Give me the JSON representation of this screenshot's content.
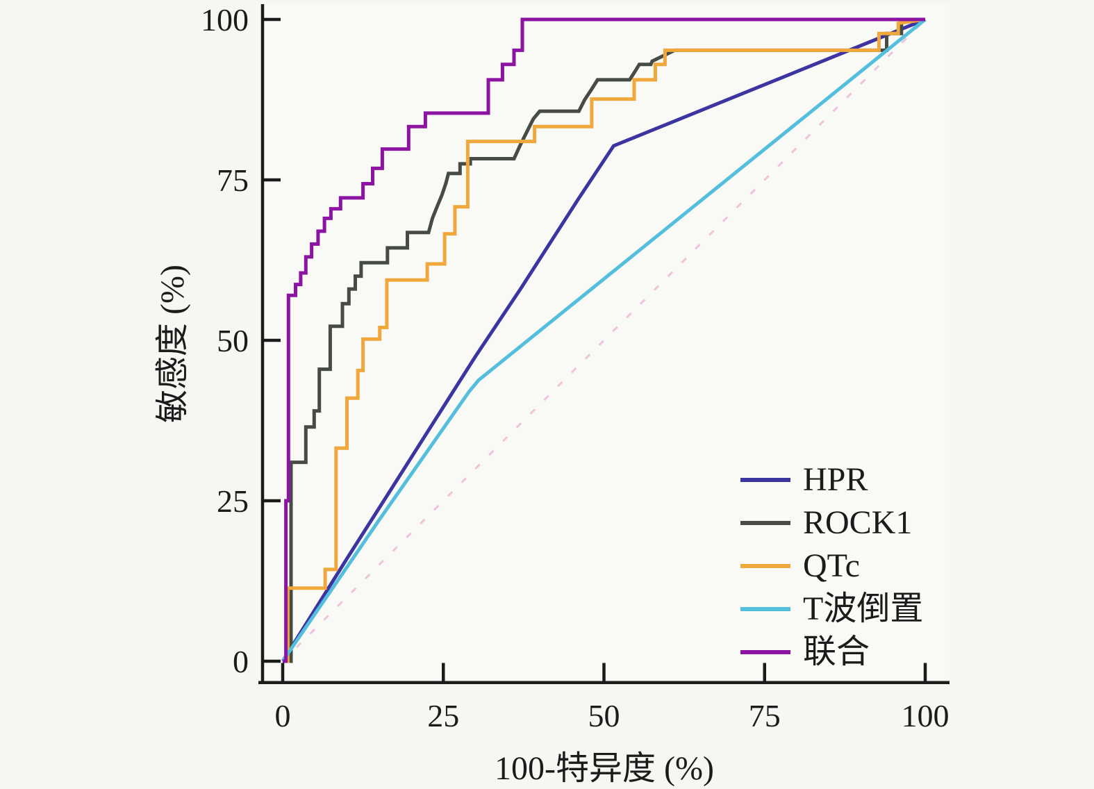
{
  "chart_data": {
    "type": "line",
    "subtype": "roc-curves",
    "title": "",
    "xlabel": "100-特异度 (%)",
    "ylabel": "敏感度 (%)",
    "xlim": [
      0,
      100
    ],
    "ylim": [
      0,
      100
    ],
    "grid": false,
    "legend_position": "lower-right",
    "axis_color": "#1b1b1b",
    "background_color": "#f6f6f3",
    "x_ticks": [
      "0",
      "25",
      "50",
      "75",
      "100"
    ],
    "x_tick_values": [
      0,
      25,
      50,
      75,
      100
    ],
    "y_ticks": [
      "0",
      "25",
      "50",
      "75",
      "100"
    ],
    "y_tick_values": [
      0,
      25,
      50,
      75,
      100
    ],
    "reference_line": {
      "id": "chance-diagonal",
      "color": "#efc3da",
      "dashed": true,
      "points": [
        [
          0,
          0
        ],
        [
          100,
          100
        ]
      ]
    },
    "series": [
      {
        "id": "hpr",
        "name": "HPR",
        "color": "#3b34a1",
        "points": [
          [
            0,
            0
          ],
          [
            10,
            16
          ],
          [
            17,
            27
          ],
          [
            30,
            47.5
          ],
          [
            37,
            58
          ],
          [
            46,
            72
          ],
          [
            51.5,
            80.3
          ],
          [
            100,
            100
          ]
        ]
      },
      {
        "id": "rock1",
        "name": "ROCK1",
        "color": "#464b46",
        "points": [
          [
            0,
            0
          ],
          [
            1.3,
            0
          ],
          [
            1.3,
            31
          ],
          [
            3.6,
            31
          ],
          [
            3.6,
            36.5
          ],
          [
            4.9,
            36.5
          ],
          [
            4.9,
            39
          ],
          [
            5.7,
            39
          ],
          [
            5.7,
            45.5
          ],
          [
            7.4,
            45.5
          ],
          [
            7.4,
            52.2
          ],
          [
            9.3,
            52.2
          ],
          [
            9.3,
            55.7
          ],
          [
            10.3,
            55.7
          ],
          [
            10.3,
            58
          ],
          [
            11.3,
            58
          ],
          [
            11.3,
            60
          ],
          [
            12.2,
            60
          ],
          [
            12.2,
            62.1
          ],
          [
            16.3,
            62.1
          ],
          [
            16.3,
            64.4
          ],
          [
            19.4,
            64.4
          ],
          [
            19.4,
            66.8
          ],
          [
            22.7,
            66.8
          ],
          [
            23.3,
            69
          ],
          [
            24.1,
            71
          ],
          [
            24.8,
            72.7
          ],
          [
            25.4,
            74.5
          ],
          [
            25.8,
            76
          ],
          [
            27.6,
            76
          ],
          [
            27.6,
            77.5
          ],
          [
            29.2,
            77.5
          ],
          [
            29.2,
            78.3
          ],
          [
            36,
            78.3
          ],
          [
            37,
            80.5
          ],
          [
            38,
            82.5
          ],
          [
            39,
            84.5
          ],
          [
            40,
            85.7
          ],
          [
            46.1,
            85.7
          ],
          [
            47,
            87.5
          ],
          [
            48,
            89
          ],
          [
            49,
            90.6
          ],
          [
            54,
            90.6
          ],
          [
            54.7,
            91.7
          ],
          [
            55.5,
            93
          ],
          [
            57.3,
            93
          ],
          [
            57.5,
            93.5
          ],
          [
            61,
            95.2
          ],
          [
            94,
            95.2
          ],
          [
            94,
            97.8
          ],
          [
            96.3,
            97.8
          ],
          [
            96.3,
            100
          ],
          [
            100,
            100
          ]
        ]
      },
      {
        "id": "qtc",
        "name": "QTc",
        "color": "#f0a83c",
        "points": [
          [
            0,
            0
          ],
          [
            0.8,
            0
          ],
          [
            0.8,
            11.4
          ],
          [
            6.6,
            11.4
          ],
          [
            6.6,
            14.3
          ],
          [
            8.3,
            14.3
          ],
          [
            8.3,
            33.2
          ],
          [
            10,
            33.2
          ],
          [
            10,
            41
          ],
          [
            11.7,
            41
          ],
          [
            11.7,
            45.3
          ],
          [
            12.5,
            45.3
          ],
          [
            12.5,
            50.2
          ],
          [
            15.1,
            50.2
          ],
          [
            15.1,
            52
          ],
          [
            16.2,
            52
          ],
          [
            16.2,
            59.4
          ],
          [
            22.5,
            59.4
          ],
          [
            22.5,
            61.9
          ],
          [
            25.2,
            61.9
          ],
          [
            25.2,
            66.6
          ],
          [
            26.8,
            66.6
          ],
          [
            26.8,
            70.8
          ],
          [
            28.8,
            70.8
          ],
          [
            28.8,
            81
          ],
          [
            39.2,
            81
          ],
          [
            39.2,
            83.3
          ],
          [
            48.1,
            83.3
          ],
          [
            48.1,
            87.6
          ],
          [
            54.7,
            87.6
          ],
          [
            54.7,
            90.6
          ],
          [
            58,
            90.6
          ],
          [
            58,
            93
          ],
          [
            59.5,
            93
          ],
          [
            59.5,
            95.2
          ],
          [
            92.8,
            95.2
          ],
          [
            92.8,
            97.8
          ],
          [
            95.8,
            97.8
          ],
          [
            95.8,
            99.4
          ],
          [
            100,
            100
          ]
        ]
      },
      {
        "id": "t-wave-inversion",
        "name": "T波倒置",
        "color": "#53bfdd",
        "points": [
          [
            0,
            0
          ],
          [
            15,
            22
          ],
          [
            29,
            42
          ],
          [
            30.5,
            43.8
          ],
          [
            100,
            100
          ]
        ]
      },
      {
        "id": "combined",
        "name": "联合",
        "color": "#8d14a2",
        "points": [
          [
            0,
            0
          ],
          [
            0.5,
            0
          ],
          [
            0.5,
            25
          ],
          [
            0.9,
            25
          ],
          [
            0.9,
            57
          ],
          [
            2,
            57
          ],
          [
            2,
            58.7
          ],
          [
            2.8,
            58.7
          ],
          [
            2.8,
            60.5
          ],
          [
            3.6,
            60.5
          ],
          [
            3.6,
            63
          ],
          [
            4.5,
            63
          ],
          [
            4.5,
            65
          ],
          [
            5.5,
            65
          ],
          [
            5.5,
            67
          ],
          [
            6.5,
            67
          ],
          [
            6.5,
            69
          ],
          [
            7.5,
            69
          ],
          [
            7.5,
            70.5
          ],
          [
            9,
            70.5
          ],
          [
            9,
            72.2
          ],
          [
            12.5,
            72.2
          ],
          [
            12.5,
            74.4
          ],
          [
            14,
            74.4
          ],
          [
            14,
            76.8
          ],
          [
            15.5,
            76.8
          ],
          [
            15.5,
            79.8
          ],
          [
            19.6,
            79.8
          ],
          [
            19.6,
            83.3
          ],
          [
            22.2,
            83.3
          ],
          [
            22.2,
            85.4
          ],
          [
            32,
            85.4
          ],
          [
            32,
            90.6
          ],
          [
            34.2,
            90.6
          ],
          [
            34.2,
            93
          ],
          [
            36,
            93
          ],
          [
            36,
            95.2
          ],
          [
            37.3,
            95.2
          ],
          [
            37.3,
            100
          ],
          [
            100,
            100
          ]
        ]
      }
    ]
  }
}
